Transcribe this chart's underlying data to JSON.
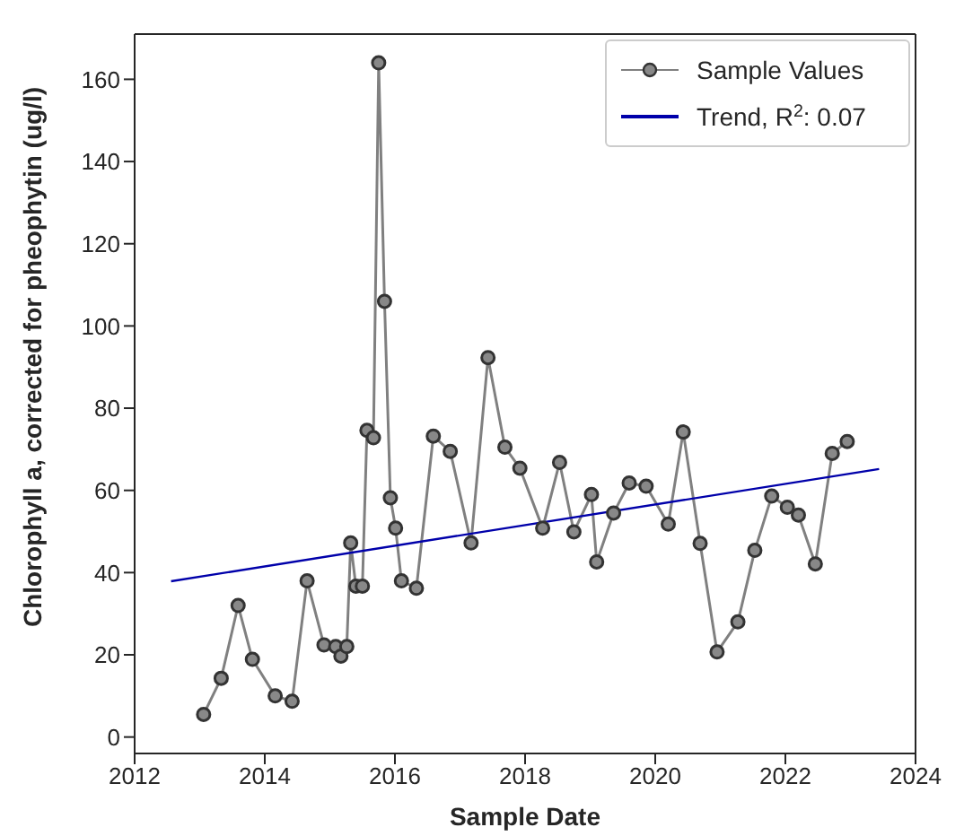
{
  "chart_data": {
    "type": "line",
    "xlabel": "Sample Date",
    "ylabel": "Chlorophyll a, corrected for pheophytin (ug/l)",
    "xlim": [
      2012,
      2024
    ],
    "xticks": [
      2012,
      2014,
      2016,
      2018,
      2020,
      2022,
      2024
    ],
    "ylim": [
      -4,
      171
    ],
    "yticks": [
      0,
      20,
      40,
      60,
      80,
      100,
      120,
      140,
      160
    ],
    "legend": "top right",
    "series": [
      {
        "name": "Sample Values",
        "color": "#808080",
        "marker": "circle",
        "x": [
          2013.06,
          2013.33,
          2013.59,
          2013.81,
          2014.16,
          2014.42,
          2014.65,
          2014.91,
          2015.09,
          2015.17,
          2015.26,
          2015.32,
          2015.4,
          2015.5,
          2015.57,
          2015.67,
          2015.75,
          2015.84,
          2015.93,
          2016.01,
          2016.1,
          2016.33,
          2016.59,
          2016.85,
          2017.17,
          2017.43,
          2017.69,
          2017.92,
          2018.27,
          2018.53,
          2018.75,
          2019.02,
          2019.1,
          2019.36,
          2019.6,
          2019.86,
          2020.2,
          2020.43,
          2020.69,
          2020.95,
          2021.27,
          2021.53,
          2021.79,
          2022.03,
          2022.2,
          2022.46,
          2022.72,
          2022.95
        ],
        "values": [
          5.5,
          14.3,
          32,
          18.9,
          10,
          8.7,
          38,
          22.4,
          22,
          19.7,
          22,
          47.2,
          36.7,
          36.7,
          74.6,
          72.8,
          164,
          106,
          58.2,
          50.8,
          38,
          36.2,
          73.2,
          69.5,
          47.2,
          92.3,
          70.5,
          65.4,
          50.8,
          66.8,
          49.9,
          59,
          42.6,
          54.5,
          61.8,
          61,
          51.8,
          74.2,
          47.1,
          20.7,
          28,
          45.4,
          58.6,
          55.9,
          54,
          42.1,
          69,
          71.9
        ]
      },
      {
        "name": "Trend, R$^{2}$: 0.07",
        "color": "#0000aa",
        "type": "line",
        "marker": "none",
        "x": [
          2012.56,
          2023.44
        ],
        "values": [
          37.9,
          65.2
        ]
      }
    ]
  }
}
